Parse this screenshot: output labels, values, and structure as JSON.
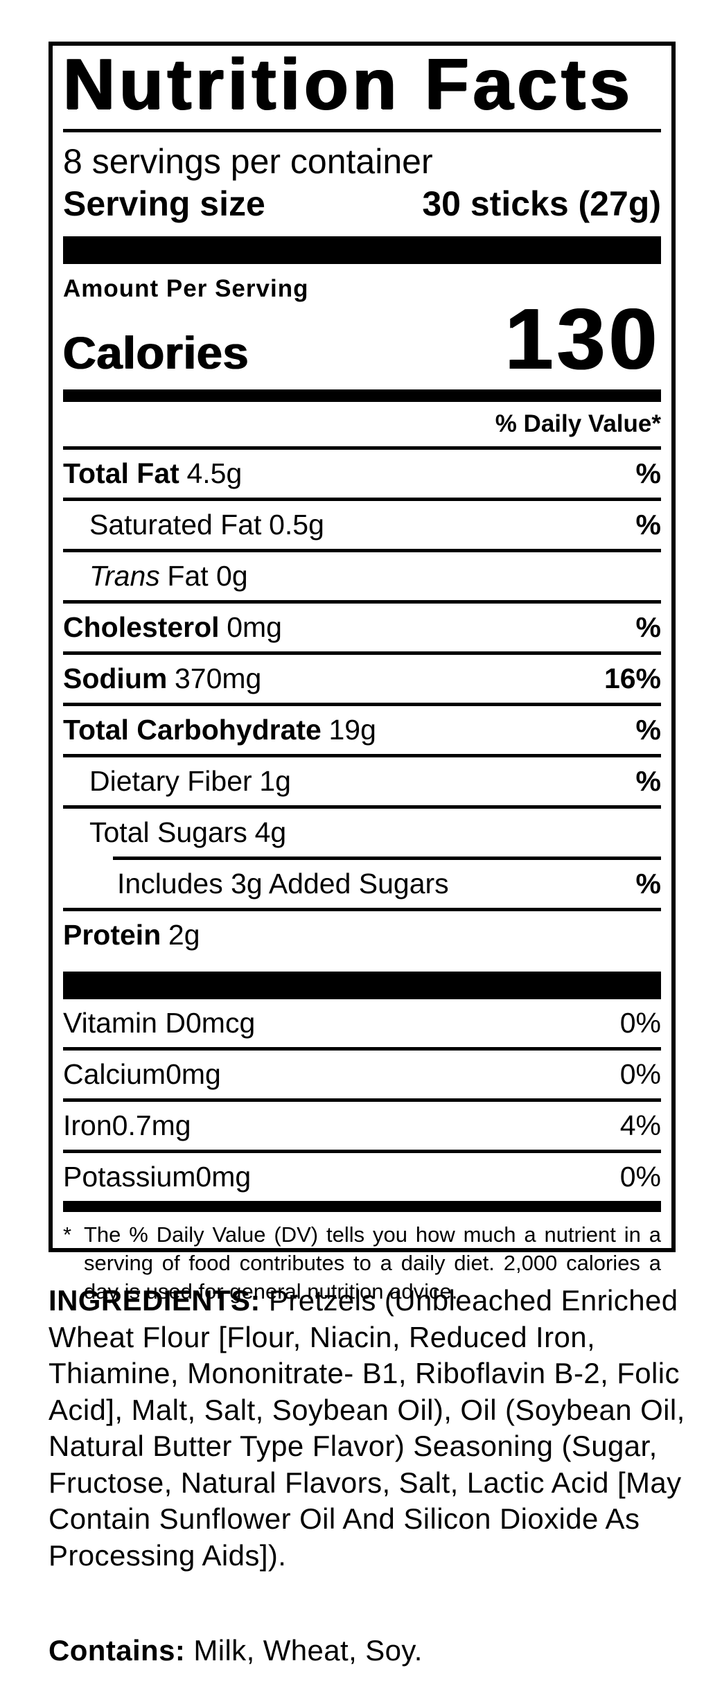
{
  "colors": {
    "text": "#000000",
    "background": "#ffffff"
  },
  "label": {
    "title": "Nutrition Facts",
    "servings_per_container": "8 servings per container",
    "serving_size_label": "Serving size",
    "serving_size_value": "30 sticks (27g)",
    "amount_per_serving": "Amount Per Serving",
    "calories_label": "Calories",
    "calories_value": "130",
    "daily_value_header": "% Daily Value*",
    "rows": [
      {
        "name": "Total Fat",
        "amount": "4.5g",
        "dv": "%"
      },
      {
        "name": "Saturated Fat",
        "amount": "0.5g",
        "dv": "%"
      },
      {
        "name": "Trans",
        "amount": "Fat 0g",
        "dv": ""
      },
      {
        "name": "Cholesterol",
        "amount": "0mg",
        "dv": "%"
      },
      {
        "name": "Sodium",
        "amount": "370mg",
        "dv": "16%"
      },
      {
        "name": "Total Carbohydrate",
        "amount": "19g",
        "dv": "%"
      },
      {
        "name": "Dietary Fiber",
        "amount": "1g",
        "dv": "%"
      },
      {
        "name": "Total Sugars",
        "amount": "4g",
        "dv": ""
      },
      {
        "name": "Includes 3g Added Sugars",
        "amount": "",
        "dv": "%"
      },
      {
        "name": "Protein",
        "amount": "2g",
        "dv": ""
      }
    ],
    "micronutrients": [
      {
        "name": "Vitamin D",
        "amount": "0mcg",
        "dv": "0%"
      },
      {
        "name": "Calcium",
        "amount": "0mg",
        "dv": "0%"
      },
      {
        "name": "Iron",
        "amount": "0.7mg",
        "dv": "4%"
      },
      {
        "name": "Potassium",
        "amount": "0mg",
        "dv": "0%"
      }
    ],
    "footnote_marker": "*",
    "footnote": "The % Daily Value (DV) tells you how much a nutrient in a serving of food contributes to a daily diet. 2,000 calories a day is used for general nutrition advice."
  },
  "ingredients": {
    "heading": "INGREDIENTS:",
    "text": "Pretzels (Unbleached Enriched Wheat Flour [Flour, Niacin, Reduced Iron, Thiamine, Mononitrate- B1, Riboflavin B-2, Folic Acid], Malt, Salt, Soybean Oil), Oil (Soybean Oil, Natural Butter Type Flavor) Seasoning (Sugar, Fructose, Natural Flavors, Salt, Lactic Acid [May Contain Sunflower Oil And Silicon Dioxide As Processing Aids])."
  },
  "contains": {
    "heading": "Contains:",
    "text": "Milk, Wheat, Soy."
  }
}
